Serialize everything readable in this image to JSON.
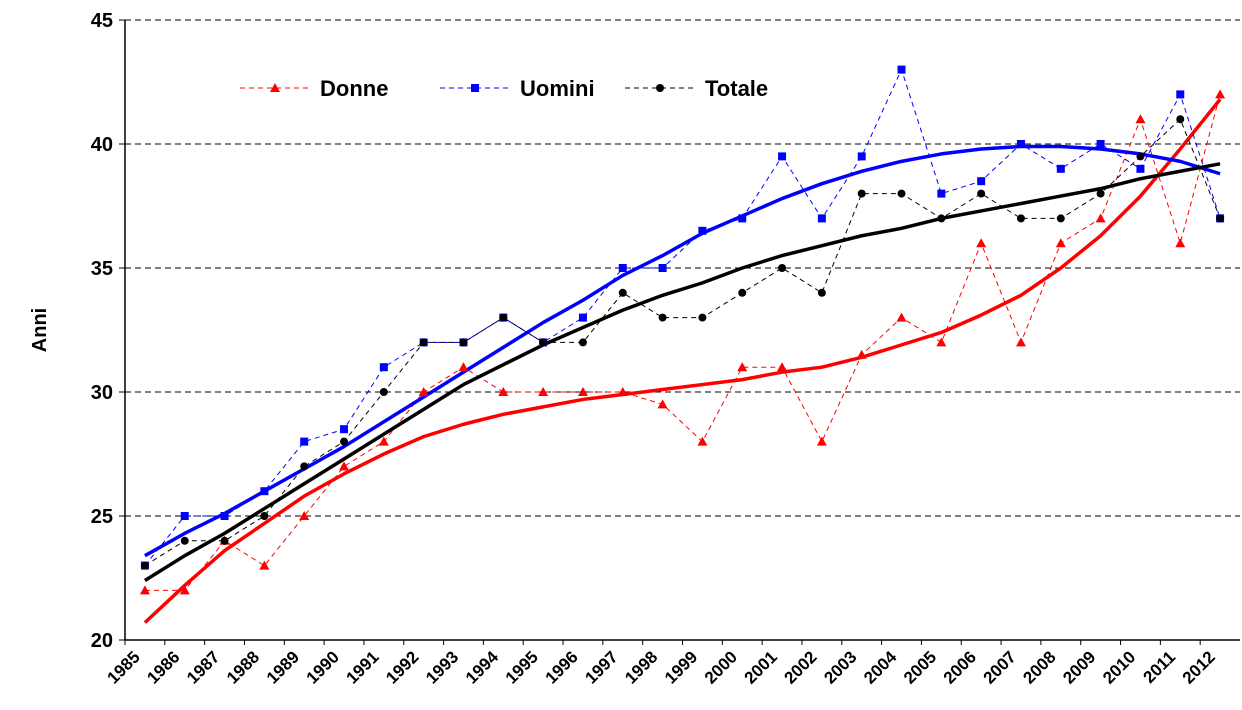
{
  "chart_data": {
    "type": "line",
    "y_label": "Anni",
    "categories": [
      "1985",
      "1986",
      "1987",
      "1988",
      "1989",
      "1990",
      "1991",
      "1992",
      "1993",
      "1994",
      "1995",
      "1996",
      "1997",
      "1998",
      "1999",
      "2000",
      "2001",
      "2002",
      "2003",
      "2004",
      "2005",
      "2006",
      "2007",
      "2008",
      "2009",
      "2010",
      "2011",
      "2012"
    ],
    "series": [
      {
        "name": "Donne",
        "color": "#ff0000",
        "marker": "triangle",
        "values": [
          22,
          22,
          24,
          23,
          25,
          27,
          28,
          30,
          31,
          30,
          30,
          30,
          30,
          29.5,
          28,
          31,
          31,
          28,
          31.5,
          33,
          32,
          36,
          32,
          36,
          37,
          41,
          36,
          42
        ],
        "trend": [
          20.7,
          22.2,
          23.6,
          24.7,
          25.8,
          26.7,
          27.5,
          28.2,
          28.7,
          29.1,
          29.4,
          29.7,
          29.9,
          30.1,
          30.3,
          30.5,
          30.8,
          31,
          31.4,
          31.9,
          32.4,
          33.1,
          33.9,
          35,
          36.3,
          37.9,
          39.8,
          41.8
        ]
      },
      {
        "name": "Uomini",
        "color": "#0000ff",
        "marker": "square",
        "values": [
          23,
          25,
          25,
          26,
          28,
          28.5,
          31,
          32,
          32,
          33,
          32,
          33,
          35,
          35,
          36.5,
          37,
          39.5,
          37,
          39.5,
          43,
          38,
          38.5,
          40,
          39,
          40,
          39,
          42,
          37
        ],
        "trend": [
          23.4,
          24.3,
          25.1,
          26,
          26.9,
          27.8,
          28.8,
          29.8,
          30.8,
          31.8,
          32.8,
          33.7,
          34.7,
          35.5,
          36.4,
          37.1,
          37.8,
          38.4,
          38.9,
          39.3,
          39.6,
          39.8,
          39.9,
          39.9,
          39.8,
          39.6,
          39.3,
          38.8
        ]
      },
      {
        "name": "Totale",
        "color": "#000000",
        "marker": "circle",
        "values": [
          23,
          24,
          24,
          25,
          27,
          28,
          30,
          32,
          32,
          33,
          32,
          32,
          34,
          33,
          33,
          34,
          35,
          34,
          38,
          38,
          37,
          38,
          37,
          37,
          38,
          39.5,
          41,
          37
        ],
        "trend": [
          22.4,
          23.4,
          24.3,
          25.3,
          26.3,
          27.3,
          28.3,
          29.3,
          30.3,
          31.1,
          31.9,
          32.6,
          33.3,
          33.9,
          34.4,
          35,
          35.5,
          35.9,
          36.3,
          36.6,
          37,
          37.3,
          37.6,
          37.9,
          38.2,
          38.6,
          38.9,
          39.2
        ]
      }
    ],
    "ylim": [
      20,
      45
    ],
    "yticks": [
      20,
      25,
      30,
      35,
      40,
      45
    ],
    "grid": true
  }
}
